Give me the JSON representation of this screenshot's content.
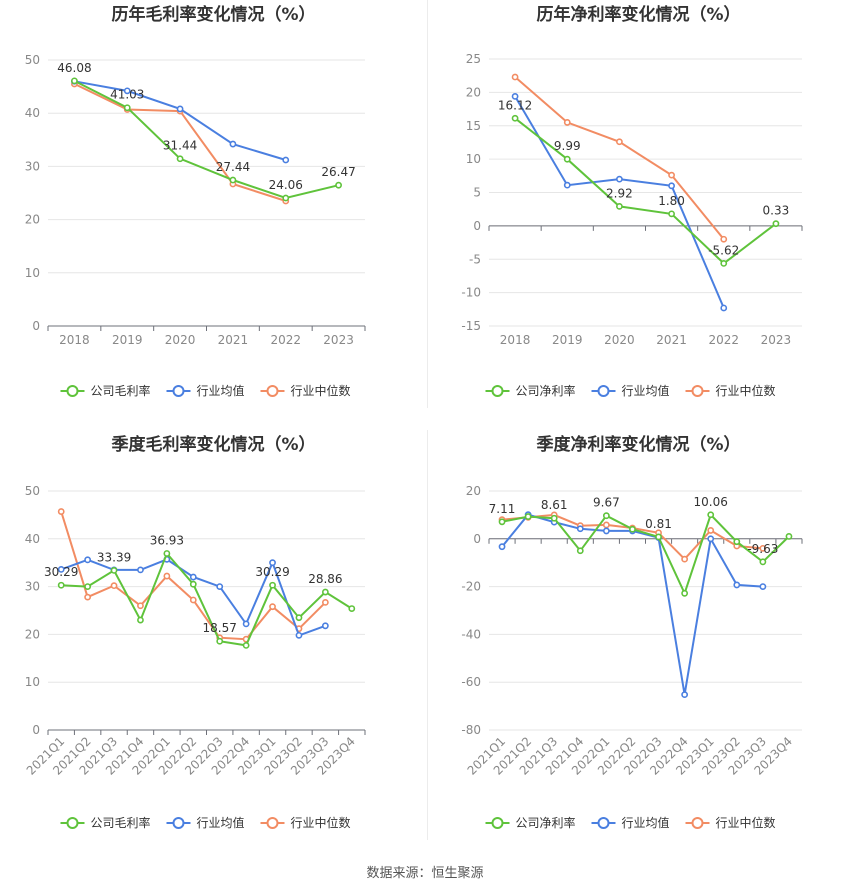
{
  "source": "数据来源：恒生聚源",
  "legend": {
    "company_gross": "公司毛利率",
    "company_net": "公司净利率",
    "industry_mean": "行业均值",
    "industry_median": "行业中位数"
  },
  "colors": {
    "company": "#5fc33b",
    "mean": "#4a7fe0",
    "median": "#f28c63"
  },
  "chart_data": [
    {
      "type": "line",
      "title": "历年毛利率变化情况（%）",
      "categories": [
        "2018",
        "2019",
        "2020",
        "2021",
        "2022",
        "2023"
      ],
      "ylim": [
        0,
        50
      ],
      "yticks": [
        0,
        10,
        20,
        30,
        40,
        50
      ],
      "grid": true,
      "legend_position": "bottom",
      "series": [
        {
          "name": "公司毛利率",
          "values": [
            46.08,
            41.03,
            31.44,
            27.44,
            24.06,
            26.47
          ],
          "labels": [
            "46.08",
            "41.03",
            "31.44",
            "27.44",
            "24.06",
            "26.47"
          ]
        },
        {
          "name": "行业均值",
          "values": [
            46.0,
            44.2,
            40.8,
            34.2,
            31.2,
            null
          ]
        },
        {
          "name": "行业中位数",
          "values": [
            45.5,
            40.7,
            40.4,
            26.7,
            23.5,
            null
          ]
        }
      ]
    },
    {
      "type": "line",
      "title": "历年净利率变化情况（%）",
      "categories": [
        "2018",
        "2019",
        "2020",
        "2021",
        "2022",
        "2023"
      ],
      "ylim": [
        -15,
        25
      ],
      "yticks": [
        -15,
        -10,
        -5,
        0,
        5,
        10,
        15,
        20,
        25
      ],
      "grid": true,
      "legend_position": "bottom",
      "series": [
        {
          "name": "公司净利率",
          "values": [
            16.12,
            9.99,
            2.92,
            1.8,
            -5.62,
            0.33
          ],
          "labels": [
            "16.12",
            "9.99",
            "2.92",
            "1.80",
            "-5.62",
            "0.33"
          ]
        },
        {
          "name": "行业均值",
          "values": [
            19.4,
            6.1,
            7.0,
            6.0,
            -12.3,
            null
          ]
        },
        {
          "name": "行业中位数",
          "values": [
            22.3,
            15.5,
            12.6,
            7.6,
            -2.0,
            null
          ]
        }
      ]
    },
    {
      "type": "line",
      "title": "季度毛利率变化情况（%）",
      "categories": [
        "2021Q1",
        "2021Q2",
        "2021Q3",
        "2021Q4",
        "2022Q1",
        "2022Q2",
        "2022Q3",
        "2022Q4",
        "2023Q1",
        "2023Q2",
        "2023Q3",
        "2023Q4"
      ],
      "ylim": [
        0,
        50
      ],
      "yticks": [
        0,
        10,
        20,
        30,
        40,
        50
      ],
      "grid": true,
      "legend_position": "bottom",
      "series": [
        {
          "name": "公司毛利率",
          "values": [
            30.29,
            30.0,
            33.39,
            23.0,
            36.93,
            30.5,
            18.57,
            17.7,
            30.29,
            23.5,
            28.86,
            25.4
          ],
          "labels": [
            "30.29",
            "",
            "33.39",
            "",
            "36.93",
            "",
            "18.57",
            "",
            "30.29",
            "",
            "28.86",
            ""
          ]
        },
        {
          "name": "行业均值",
          "values": [
            33.6,
            35.6,
            33.5,
            33.5,
            35.7,
            32.0,
            30.0,
            22.2,
            35.0,
            19.8,
            21.8,
            null
          ]
        },
        {
          "name": "行业中位数",
          "values": [
            45.7,
            27.8,
            30.2,
            26.0,
            32.2,
            27.2,
            19.3,
            19.0,
            25.8,
            21.2,
            26.7,
            null
          ]
        }
      ]
    },
    {
      "type": "line",
      "title": "季度净利率变化情况（%）",
      "categories": [
        "2021Q1",
        "2021Q2",
        "2021Q3",
        "2021Q4",
        "2022Q1",
        "2022Q2",
        "2022Q3",
        "2022Q4",
        "2023Q1",
        "2023Q2",
        "2023Q3",
        "2023Q4"
      ],
      "ylim": [
        -80,
        20
      ],
      "yticks": [
        -80,
        -60,
        -40,
        -20,
        0,
        20
      ],
      "grid": true,
      "legend_position": "bottom",
      "series": [
        {
          "name": "公司净利率",
          "values": [
            7.11,
            9.3,
            8.61,
            -5.0,
            9.67,
            4.0,
            0.81,
            -22.8,
            10.06,
            -1.2,
            -9.63,
            1.0
          ],
          "labels": [
            "7.11",
            "",
            "8.61",
            "",
            "9.67",
            "",
            "0.81",
            "",
            "10.06",
            "",
            "-9.63",
            ""
          ]
        },
        {
          "name": "行业均值",
          "values": [
            -3.3,
            10.1,
            7.0,
            4.2,
            3.3,
            3.3,
            0.5,
            -65.2,
            0.0,
            -19.3,
            -20.0,
            null
          ]
        },
        {
          "name": "行业中位数",
          "values": [
            8.0,
            9.0,
            10.0,
            5.5,
            5.8,
            4.5,
            2.5,
            -8.5,
            3.5,
            -3.0,
            -4.0,
            null
          ]
        }
      ]
    }
  ]
}
